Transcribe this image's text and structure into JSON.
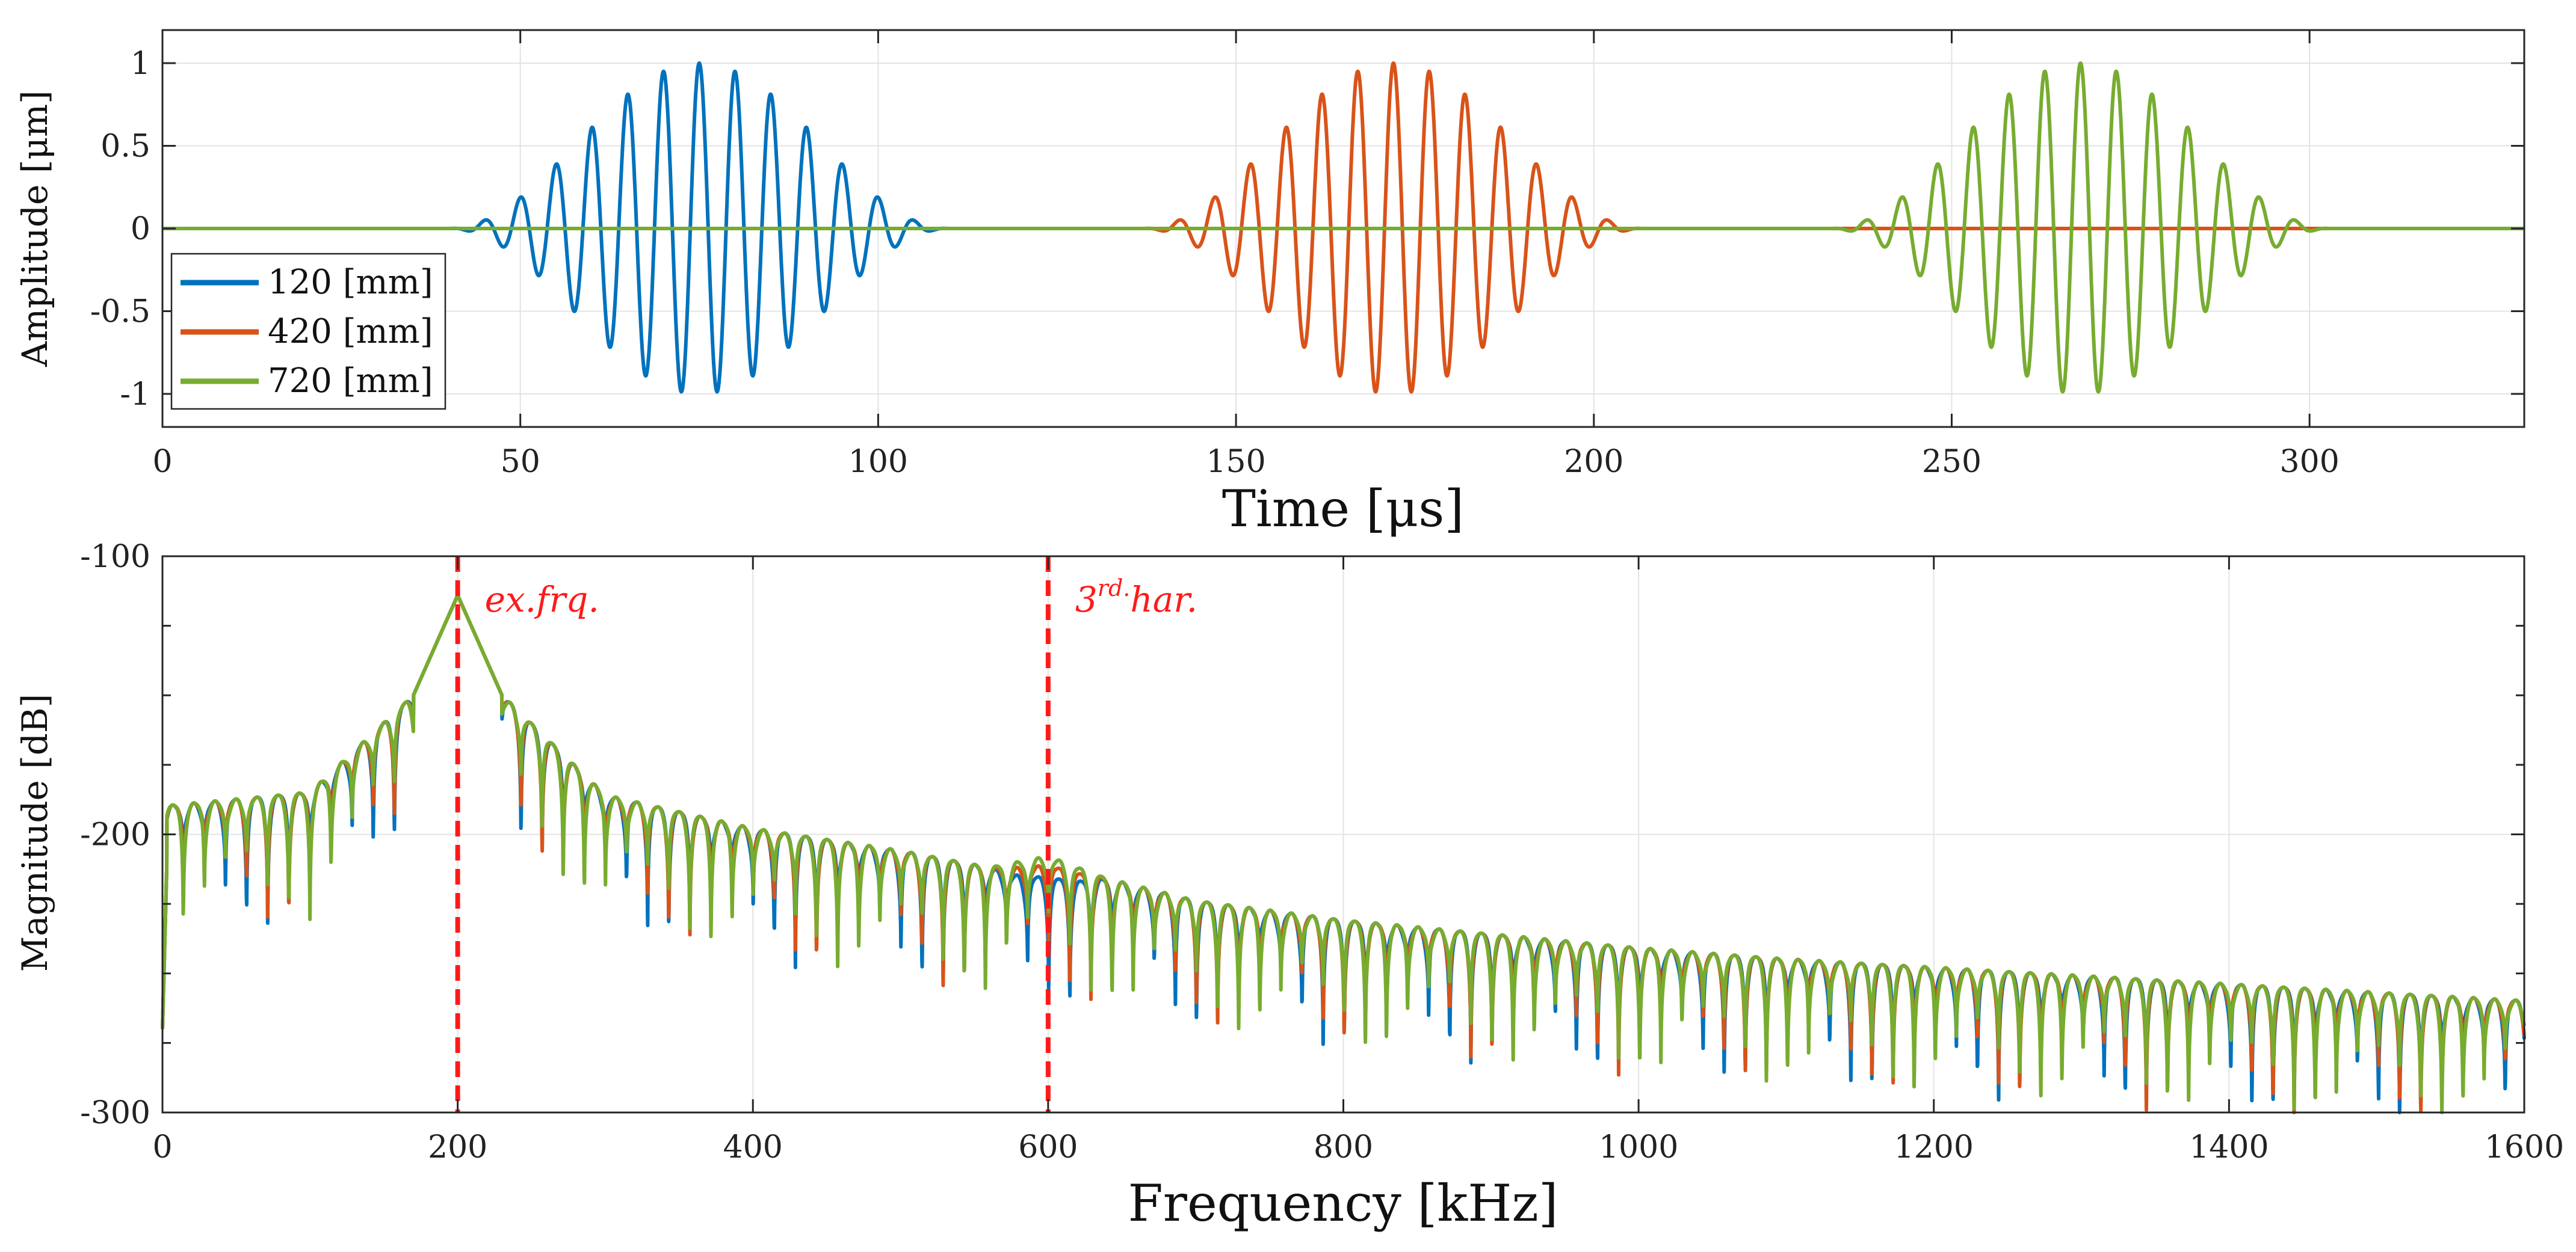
{
  "chart_data": [
    {
      "type": "line",
      "panel": "time-domain",
      "title": "",
      "xlabel": "Time [μs]",
      "ylabel": "Amplitude [μm]",
      "xlim": [
        0,
        330
      ],
      "ylim": [
        -1.2,
        1.2
      ],
      "xticks": [
        0,
        50,
        100,
        150,
        200,
        250,
        300
      ],
      "xtick_labels": [
        "0",
        "50",
        "100",
        "150",
        "200",
        "250",
        "300"
      ],
      "yticks": [
        1,
        0.5,
        0,
        -0.5,
        -1
      ],
      "ytick_labels": [
        "1",
        "0.5",
        "0",
        "-0.5",
        "-1"
      ],
      "grid": true,
      "legend_position": "bottom-left",
      "series": [
        {
          "name": "120 [mm]",
          "color": "#0072BD",
          "burst_start": 40,
          "burst_end": 110,
          "frequency_khz": 200,
          "peak_amplitude": 1
        },
        {
          "name": "420 [mm]",
          "color": "#D95319",
          "burst_start": 137,
          "burst_end": 207,
          "frequency_khz": 200,
          "peak_amplitude": 1
        },
        {
          "name": "720 [mm]",
          "color": "#77AC30",
          "burst_start": 233,
          "burst_end": 303,
          "frequency_khz": 200,
          "peak_amplitude": 1
        }
      ]
    },
    {
      "type": "line",
      "panel": "frequency-domain",
      "title": "",
      "xlabel": "Frequency [kHz]",
      "ylabel": "Magnitude [dB]",
      "xlim": [
        0,
        1600
      ],
      "ylim": [
        -300,
        -100
      ],
      "xticks": [
        0,
        200,
        400,
        600,
        800,
        1000,
        1200,
        1400,
        1600
      ],
      "xtick_labels": [
        "0",
        "200",
        "400",
        "600",
        "800",
        "1000",
        "1200",
        "1400",
        "1600"
      ],
      "yticks": [
        -100,
        -200,
        -300
      ],
      "ytick_labels": [
        "-100",
        "-200",
        "-300"
      ],
      "grid": true,
      "sidelobe_spacing_khz": 14.3,
      "envelope_db": [
        [
          0,
          -190
        ],
        [
          100,
          -185
        ],
        [
          170,
          -150
        ],
        [
          200,
          -114
        ],
        [
          230,
          -150
        ],
        [
          300,
          -186
        ],
        [
          400,
          -198
        ],
        [
          500,
          -206
        ],
        [
          560,
          -212
        ],
        [
          600,
          -208
        ],
        [
          640,
          -216
        ],
        [
          700,
          -224
        ],
        [
          800,
          -231
        ],
        [
          900,
          -236
        ],
        [
          1000,
          -241
        ],
        [
          1100,
          -245
        ],
        [
          1200,
          -248
        ],
        [
          1300,
          -251
        ],
        [
          1400,
          -254
        ],
        [
          1500,
          -257
        ],
        [
          1600,
          -260
        ]
      ],
      "series": [
        {
          "name": "120 [mm]",
          "color": "#0072BD",
          "harmonic_offset_db": -7
        },
        {
          "name": "420 [mm]",
          "color": "#D95319",
          "harmonic_offset_db": -3
        },
        {
          "name": "720 [mm]",
          "color": "#77AC30",
          "harmonic_offset_db": 0
        }
      ],
      "annotations": [
        {
          "x": 200,
          "label": "ex.frq.",
          "color": "#FF1A1A"
        },
        {
          "x": 600,
          "label_base": "3",
          "label_sup": "rd.",
          "label_rest": "har.",
          "color": "#FF1A1A"
        }
      ]
    }
  ]
}
